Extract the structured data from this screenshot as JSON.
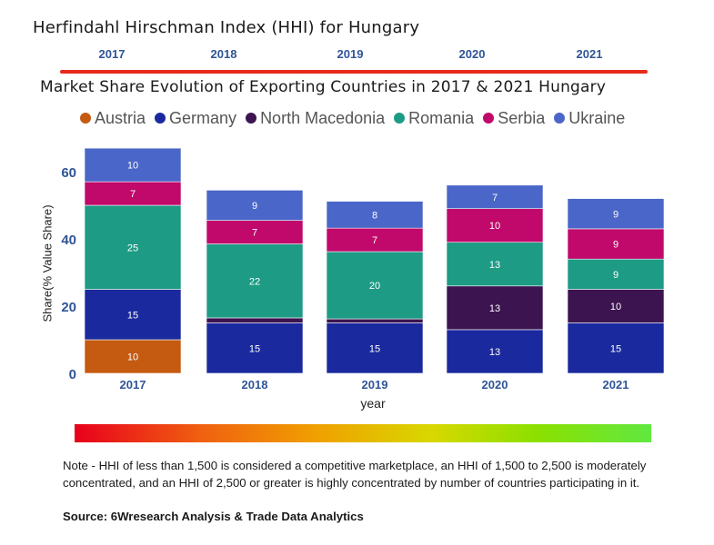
{
  "hhi": {
    "title": "Herfindahl Hirschman Index (HHI) for Hungary",
    "years": [
      "2017",
      "2018",
      "2019",
      "2020",
      "2021"
    ]
  },
  "chart_data": {
    "type": "bar",
    "stacked": true,
    "title": "Market Share Evolution of Exporting Countries in 2017 & 2021 Hungary",
    "xlabel": "year",
    "ylabel": "Share(% Value Share)",
    "categories": [
      "2017",
      "2018",
      "2019",
      "2020",
      "2021"
    ],
    "ylim": [
      0,
      70
    ],
    "yticks": [
      0,
      20,
      40,
      60
    ],
    "legend_position": "top",
    "series": [
      {
        "name": "Austria",
        "color": "#c55a11",
        "values": [
          10,
          0,
          0,
          0,
          0
        ],
        "labels": [
          "10",
          "",
          "",
          "",
          ""
        ]
      },
      {
        "name": "Germany",
        "color": "#1a2a9e",
        "values": [
          15,
          15,
          15,
          13,
          15
        ],
        "labels": [
          "15",
          "15",
          "15",
          "13",
          "15"
        ]
      },
      {
        "name": "North Macedonia",
        "color": "#3c1450",
        "values": [
          0,
          1.5,
          1.2,
          13,
          10
        ],
        "labels": [
          "",
          "",
          "",
          "13",
          "10"
        ]
      },
      {
        "name": "Romania",
        "color": "#1e9b85",
        "values": [
          25,
          22,
          20,
          13,
          9
        ],
        "labels": [
          "25",
          "22",
          "20",
          "13",
          "9"
        ]
      },
      {
        "name": "Serbia",
        "color": "#c0096b",
        "values": [
          7,
          7,
          7,
          10,
          9
        ],
        "labels": [
          "7",
          "7",
          "7",
          "10",
          "9"
        ]
      },
      {
        "name": "Ukraine",
        "color": "#4a66c8",
        "values": [
          10,
          9,
          8,
          7,
          9
        ],
        "labels": [
          "10",
          "9",
          "8",
          "7",
          "9"
        ]
      }
    ]
  },
  "note": {
    "text": "Note - HHI of less than 1,500 is considered a competitive marketplace, an HHI of 1,500 to 2,500 is moderately concentrated, and an HHI of 2,500 or greater is highly concentrated by number of countries participating in it.",
    "source": "Source: 6Wresearch Analysis & Trade Data Analytics"
  }
}
